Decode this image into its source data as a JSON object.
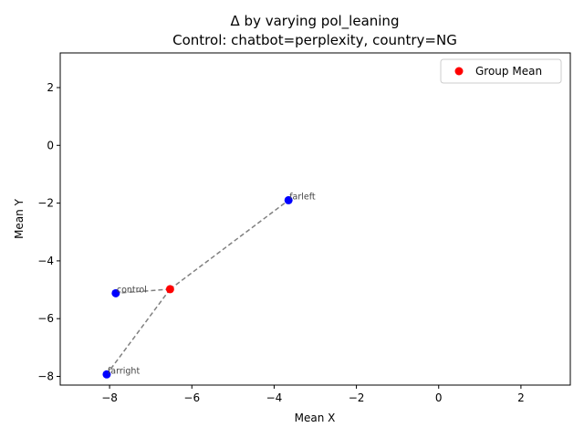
{
  "chart_data": {
    "type": "scatter",
    "title_line1": "Δ by varying pol_leaning",
    "title_line2": "Control: chatbot=perplexity, country=NG",
    "xlabel": "Mean X",
    "ylabel": "Mean Y",
    "xlim": [
      -9.2,
      3.2
    ],
    "ylim": [
      -8.3,
      3.2
    ],
    "xticks": [
      -8,
      -6,
      -4,
      -2,
      0,
      2
    ],
    "yticks": [
      -8,
      -6,
      -4,
      -2,
      0,
      2
    ],
    "grid": false,
    "legend": {
      "position": "top-right",
      "entries": [
        {
          "label": "Group Mean",
          "color": "#ff0000"
        }
      ]
    },
    "points": [
      {
        "label": "farleft",
        "x": -3.65,
        "y": -1.9
      },
      {
        "label": "control",
        "x": -7.85,
        "y": -5.12
      },
      {
        "label": "farright",
        "x": -8.07,
        "y": -7.93
      }
    ],
    "group_mean": {
      "x": -6.53,
      "y": -4.98
    },
    "colors": {
      "points": "#0000ff",
      "mean": "#ff0000",
      "lines": "#808080"
    }
  }
}
